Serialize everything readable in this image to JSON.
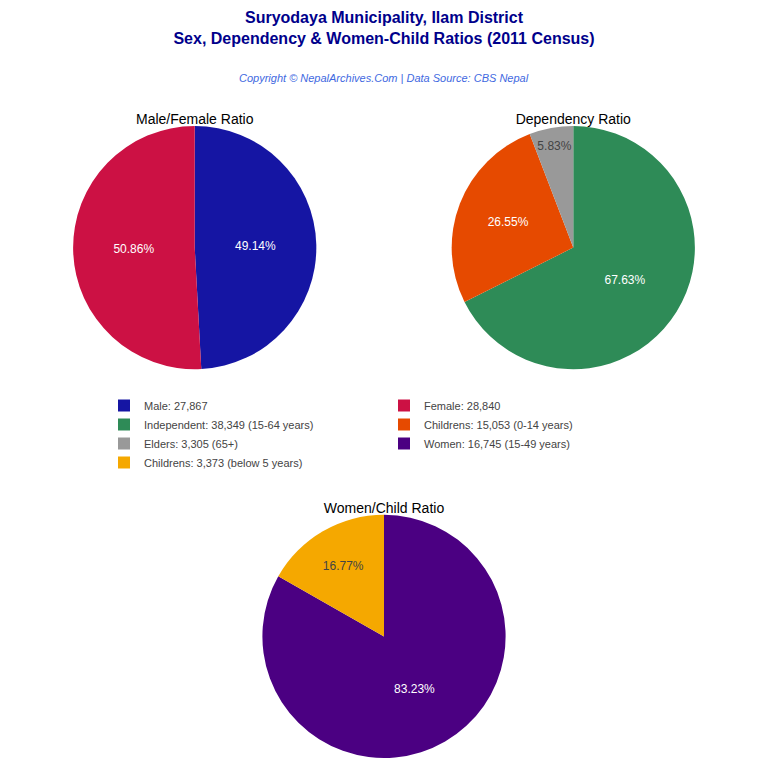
{
  "title": "Suryodaya Municipality, Ilam District",
  "subtitle": "Sex, Dependency & Women-Child Ratios (2011 Census)",
  "annotations": [
    "Copyright © NepalArchives.Com | Data Source: CBS Nepal"
  ],
  "legend": "center",
  "chart_data": [
    {
      "type": "pie",
      "title": "Male/Female Ratio",
      "categories": [
        "Male: 27,867",
        "Female: 28,840"
      ],
      "values": [
        49.14,
        50.86
      ],
      "value_labels": [
        "49.14%",
        "50.86%"
      ],
      "colors": [
        "#1515a3",
        "#cc1144"
      ],
      "data_labels": true
    },
    {
      "type": "pie",
      "title": "Dependency Ratio",
      "categories": [
        "Independent: 38,349 (15-64 years)",
        "Childrens: 15,053 (0-14 years)",
        "Elders: 3,305 (65+)"
      ],
      "values": [
        67.63,
        26.55,
        5.83
      ],
      "value_labels": [
        "67.63%",
        "26.55%",
        "5.83%"
      ],
      "colors": [
        "#2e8b57",
        "#e64a00",
        "#999999"
      ],
      "data_labels": true
    },
    {
      "type": "pie",
      "title": "Women/Child Ratio",
      "categories": [
        "Women: 16,745 (15-49 years)",
        "Childrens: 3,373 (below 5 years)"
      ],
      "values": [
        83.23,
        16.77
      ],
      "value_labels": [
        "83.23%",
        "16.77%"
      ],
      "colors": [
        "#4b0082",
        "#f5a800"
      ],
      "data_labels": true
    }
  ]
}
